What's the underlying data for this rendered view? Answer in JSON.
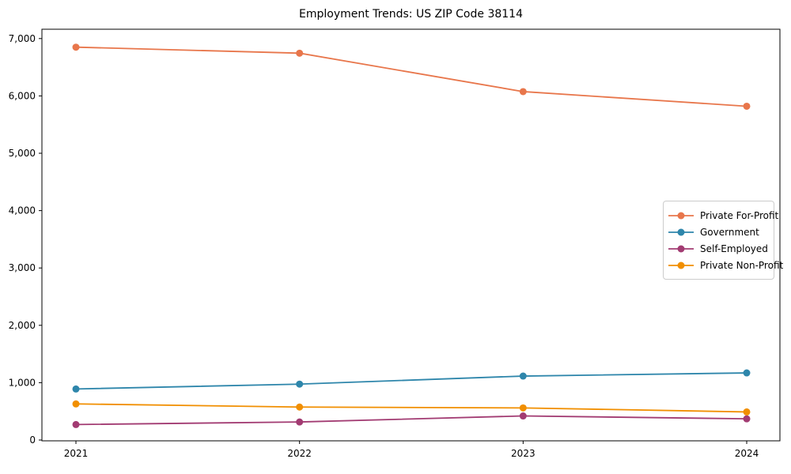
{
  "chart_data": {
    "type": "line",
    "title": "Employment Trends: US ZIP Code 38114",
    "xlabel": "",
    "ylabel": "",
    "x": [
      2021,
      2022,
      2023,
      2024
    ],
    "x_tick_labels": [
      "2021",
      "2022",
      "2023",
      "2024"
    ],
    "y_tick_values": [
      0,
      1000,
      2000,
      3000,
      4000,
      5000,
      6000,
      7000
    ],
    "y_tick_labels": [
      "0",
      "1,000",
      "2,000",
      "3,000",
      "4,000",
      "5,000",
      "6,000",
      "7,000"
    ],
    "ylim": [
      0,
      7000
    ],
    "grid": false,
    "legend_position": "center-right",
    "marker": "circle",
    "series": [
      {
        "name": "Private For-Profit",
        "color": "#E8764B",
        "values": [
          6850,
          6745,
          6075,
          5820
        ]
      },
      {
        "name": "Government",
        "color": "#2E86AB",
        "values": [
          890,
          975,
          1115,
          1170
        ]
      },
      {
        "name": "Self-Employed",
        "color": "#A23B72",
        "values": [
          270,
          315,
          420,
          370
        ]
      },
      {
        "name": "Private Non-Profit",
        "color": "#F18F01",
        "values": [
          630,
          575,
          560,
          490
        ]
      }
    ]
  }
}
